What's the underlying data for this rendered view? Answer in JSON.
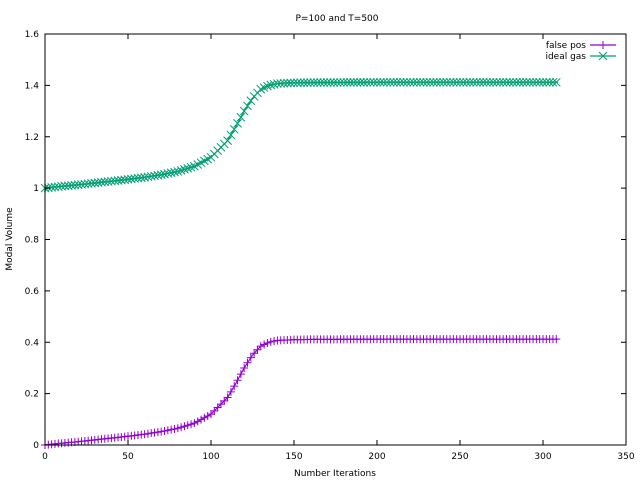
{
  "chart_data": {
    "type": "line",
    "title": "P=100 and T=500",
    "xlabel": "Number Iterations",
    "ylabel": "Modal Volume",
    "xlim": [
      0,
      350
    ],
    "ylim": [
      0,
      1.6
    ],
    "x_ticks": [
      0,
      50,
      100,
      150,
      200,
      250,
      300,
      350
    ],
    "x_tick_labels": [
      "0",
      "50",
      "100",
      "150",
      "200",
      "250",
      "300",
      "350"
    ],
    "y_ticks": [
      0,
      0.2,
      0.4,
      0.6,
      0.8,
      1.0,
      1.2,
      1.4,
      1.6
    ],
    "y_tick_labels": [
      "0",
      "0.2",
      "0.4",
      "0.6",
      "0.8",
      "1",
      "1.2",
      "1.4",
      "1.6"
    ],
    "grid": false,
    "legend_position": "top-right",
    "series": [
      {
        "name": "false pos",
        "color": "#9400d3",
        "marker": "plus",
        "points": [
          [
            0,
            0.0
          ],
          [
            10,
            0.007
          ],
          [
            20,
            0.013
          ],
          [
            30,
            0.02
          ],
          [
            40,
            0.027
          ],
          [
            50,
            0.034
          ],
          [
            60,
            0.042
          ],
          [
            70,
            0.052
          ],
          [
            80,
            0.065
          ],
          [
            90,
            0.085
          ],
          [
            100,
            0.12
          ],
          [
            110,
            0.185
          ],
          [
            115,
            0.24
          ],
          [
            120,
            0.3
          ],
          [
            125,
            0.35
          ],
          [
            130,
            0.385
          ],
          [
            135,
            0.4
          ],
          [
            140,
            0.407
          ],
          [
            150,
            0.41
          ],
          [
            160,
            0.411
          ],
          [
            200,
            0.412
          ],
          [
            250,
            0.412
          ],
          [
            309,
            0.412
          ]
        ]
      },
      {
        "name": "ideal gas",
        "color": "#009e73",
        "marker": "cross",
        "points": [
          [
            0,
            1.0
          ],
          [
            10,
            1.007
          ],
          [
            20,
            1.013
          ],
          [
            30,
            1.02
          ],
          [
            40,
            1.027
          ],
          [
            50,
            1.034
          ],
          [
            60,
            1.042
          ],
          [
            70,
            1.052
          ],
          [
            80,
            1.065
          ],
          [
            90,
            1.085
          ],
          [
            100,
            1.12
          ],
          [
            110,
            1.185
          ],
          [
            115,
            1.24
          ],
          [
            120,
            1.3
          ],
          [
            125,
            1.35
          ],
          [
            130,
            1.385
          ],
          [
            135,
            1.4
          ],
          [
            140,
            1.407
          ],
          [
            150,
            1.41
          ],
          [
            160,
            1.411
          ],
          [
            200,
            1.412
          ],
          [
            250,
            1.412
          ],
          [
            309,
            1.412
          ]
        ]
      }
    ]
  }
}
